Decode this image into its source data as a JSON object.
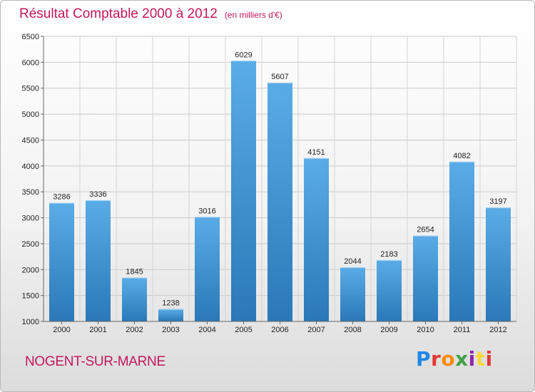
{
  "header": {
    "title": "Résultat Comptable 2000 à 2012",
    "subtitle": "(en milliers d'€)"
  },
  "footer": {
    "town": "NOGENT-SUR-MARNE",
    "logo_text": "Proxiti",
    "logo_colors": [
      "#1e88e5",
      "#e53935",
      "#fb8c00",
      "#43a047",
      "#8e24aa",
      "#fdd835",
      "#e53935"
    ]
  },
  "colors": {
    "accent": "#c2185b",
    "bar_top": "#5aace6",
    "bar_bottom": "#2a78b8"
  },
  "chart_data": {
    "type": "bar",
    "title": "Résultat Comptable 2000 à 2012",
    "subtitle": "(en milliers d'€)",
    "xlabel": "",
    "ylabel": "",
    "categories": [
      "2000",
      "2001",
      "2002",
      "2003",
      "2004",
      "2005",
      "2006",
      "2007",
      "2008",
      "2009",
      "2010",
      "2011",
      "2012"
    ],
    "values": [
      3286,
      3336,
      1845,
      1238,
      3016,
      6029,
      5607,
      4151,
      2044,
      2183,
      2654,
      4082,
      3197
    ],
    "ylim": [
      1000,
      6500
    ],
    "yticks": [
      1000,
      1500,
      2000,
      2500,
      3000,
      3500,
      4000,
      4500,
      5000,
      5500,
      6000,
      6500
    ],
    "grid": true
  }
}
